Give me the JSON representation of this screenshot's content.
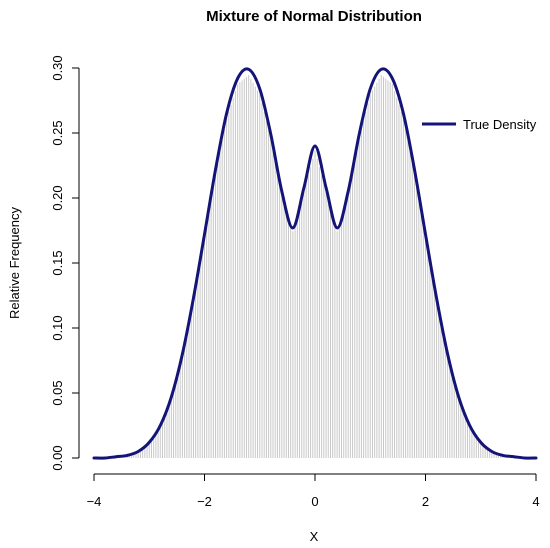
{
  "chart_data": {
    "type": "line",
    "title": "Mixture of Normal Distribution",
    "xlabel": "X",
    "ylabel": "Relative Frequency",
    "xlim": [
      -4,
      4
    ],
    "ylim": [
      0,
      0.3
    ],
    "x_ticks": [
      -4,
      -2,
      0,
      2,
      4
    ],
    "x_tick_labels": [
      "−4",
      "−2",
      "0",
      "2",
      "4"
    ],
    "y_ticks": [
      0.0,
      0.05,
      0.1,
      0.15,
      0.2,
      0.25,
      0.3
    ],
    "y_tick_labels": [
      "0.00",
      "0.05",
      "0.10",
      "0.15",
      "0.20",
      "0.25",
      "0.30"
    ],
    "grid": false,
    "legend": {
      "position": "top-right",
      "entries": [
        "True Density"
      ]
    },
    "colors": {
      "density_line": "#141478",
      "histogram_lines": "#c8c8c8",
      "axes": "#000000"
    },
    "series": [
      {
        "name": "True Density",
        "x": [
          -4.0,
          -3.8,
          -3.6,
          -3.4,
          -3.2,
          -3.0,
          -2.8,
          -2.6,
          -2.4,
          -2.2,
          -2.0,
          -1.8,
          -1.6,
          -1.4,
          -1.2,
          -1.0,
          -0.8,
          -0.6,
          -0.4,
          -0.2,
          0.0,
          0.2,
          0.4,
          0.6,
          0.8,
          1.0,
          1.2,
          1.4,
          1.6,
          1.8,
          2.0,
          2.2,
          2.4,
          2.6,
          2.8,
          3.0,
          3.2,
          3.4,
          3.6,
          3.8,
          4.0
        ],
        "y": [
          0.0,
          0.0,
          0.001,
          0.002,
          0.005,
          0.012,
          0.025,
          0.047,
          0.08,
          0.123,
          0.172,
          0.222,
          0.265,
          0.292,
          0.299,
          0.284,
          0.249,
          0.205,
          0.177,
          0.208,
          0.24,
          0.208,
          0.177,
          0.205,
          0.249,
          0.284,
          0.299,
          0.292,
          0.265,
          0.222,
          0.172,
          0.123,
          0.08,
          0.047,
          0.025,
          0.012,
          0.005,
          0.002,
          0.001,
          0.0,
          0.0
        ]
      }
    ]
  }
}
